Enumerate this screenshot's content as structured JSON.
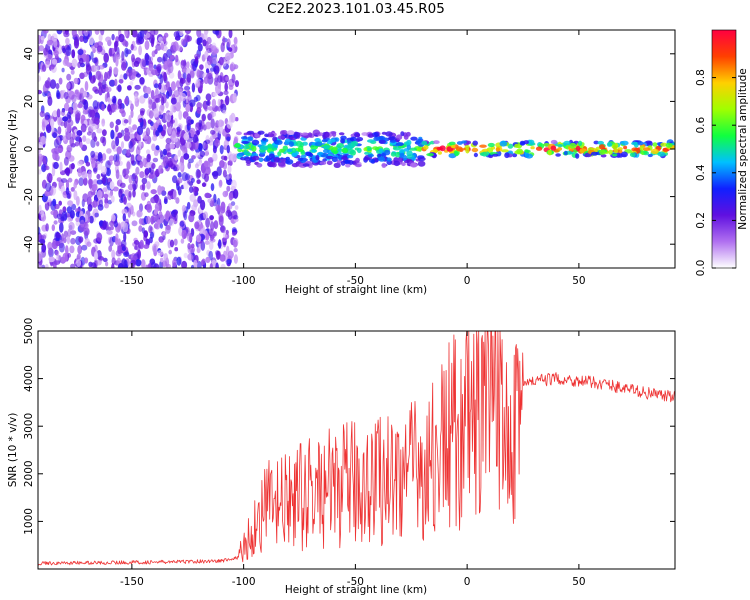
{
  "title": "C2E2.2023.101.03.45.R05",
  "chart_data": [
    {
      "type": "heatmap",
      "xlabel": "Height of straight line (km)",
      "ylabel": "Frequency (Hz)",
      "xlim": [
        -192,
        93
      ],
      "ylim": [
        -50,
        50
      ],
      "xticks": [
        -150,
        -100,
        -50,
        0,
        50
      ],
      "xtick_labels": [
        "-150",
        "-100",
        "-50",
        "0",
        "50"
      ],
      "yticks": [
        40,
        20,
        0,
        -20,
        -40
      ],
      "ytick_labels": [
        "40",
        "20",
        "0",
        "-20",
        "-40"
      ],
      "colorbar": {
        "label": "Normalized spectral amplitude",
        "range": [
          0,
          1
        ],
        "ticks": [
          0.0,
          0.2,
          0.4,
          0.6,
          0.8
        ],
        "tick_labels": [
          "0.0",
          "0.2",
          "0.4",
          "0.6",
          "0.8"
        ],
        "colormap": [
          "#ffffff",
          "#b070f0",
          "#6010e0",
          "#1020ff",
          "#00c0ff",
          "#10ff40",
          "#a0ff00",
          "#ffd000",
          "#ff4000",
          "#ff0040"
        ]
      },
      "regions": [
        {
          "x_range": [
            -192,
            -103
          ],
          "freq_range": [
            -50,
            50
          ],
          "amplitude": 0.12
        },
        {
          "x_range": [
            -103,
            -20
          ],
          "freq_range": [
            -7,
            7
          ],
          "amplitude": 0.45
        },
        {
          "x_range": [
            -20,
            93
          ],
          "freq_range": [
            -3,
            3
          ],
          "amplitude": 0.75
        }
      ]
    },
    {
      "type": "line",
      "xlabel": "Height of straight line (km)",
      "ylabel": "SNR (10 * v/v)",
      "xlim": [
        -192,
        93
      ],
      "ylim": [
        0,
        5000
      ],
      "xticks": [
        -150,
        -100,
        -50,
        0,
        50
      ],
      "xtick_labels": [
        "-150",
        "-100",
        "-50",
        "0",
        "50"
      ],
      "yticks": [
        1000,
        2000,
        3000,
        4000,
        5000
      ],
      "ytick_labels": [
        "1000",
        "2000",
        "3000",
        "4000",
        "5000"
      ],
      "color": "#ee3333",
      "series": [
        {
          "x": [
            -192,
            -170,
            -150,
            -130,
            -110,
            -103,
            -100,
            -95,
            -90,
            -80,
            -70,
            -60,
            -50,
            -40,
            -30,
            -20,
            -15,
            -10,
            -5,
            0,
            5,
            10,
            15,
            20,
            25,
            30,
            40,
            50,
            60,
            70,
            80,
            93
          ],
          "y": [
            120,
            130,
            140,
            150,
            170,
            230,
            450,
            900,
            1300,
            1400,
            1600,
            1700,
            1800,
            1900,
            2000,
            2100,
            2300,
            2700,
            2900,
            3050,
            3200,
            3300,
            3400,
            3550,
            3850,
            3950,
            4000,
            3950,
            3900,
            3800,
            3700,
            3600
          ]
        }
      ]
    }
  ]
}
